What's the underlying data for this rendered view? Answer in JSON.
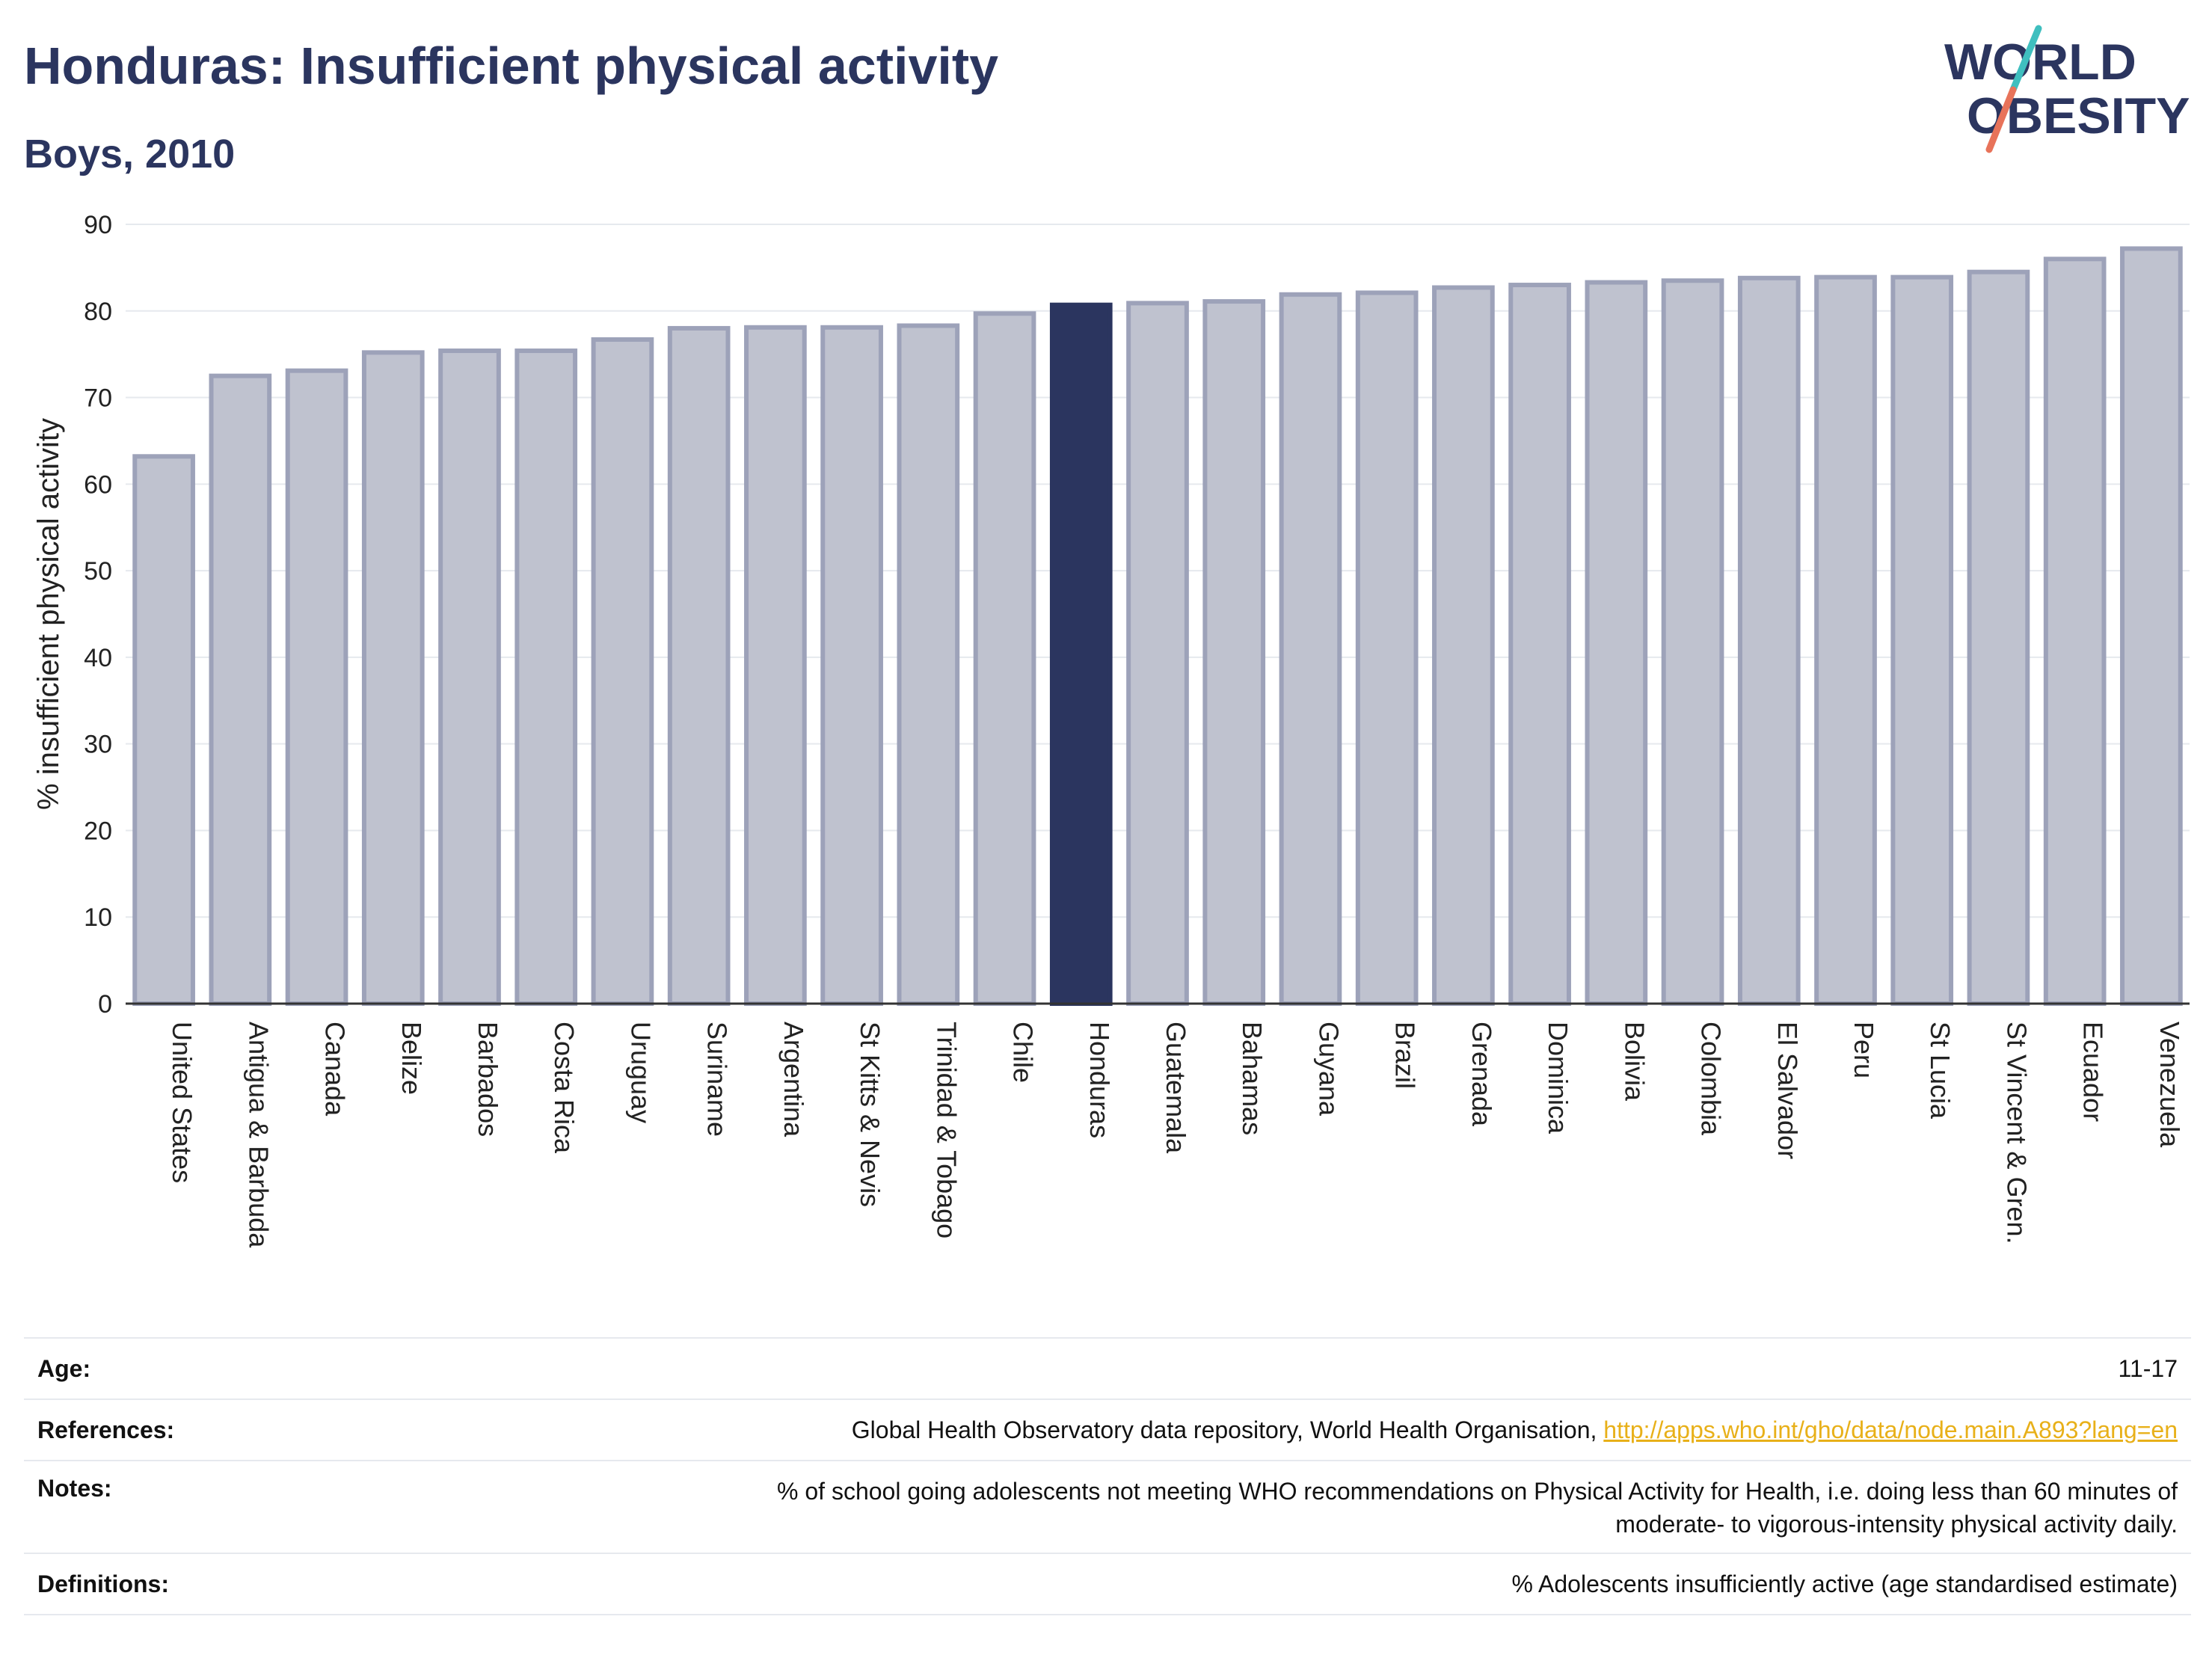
{
  "header": {
    "title": "Honduras: Insufficient physical activity",
    "subtitle": "Boys, 2010",
    "logo_line1": "WORLD",
    "logo_line2": "OBESITY"
  },
  "colors": {
    "navy": "#2b355f",
    "bar_fill": "#bfc2cf",
    "bar_stroke": "#9da2b9",
    "highlight": "#2b355f",
    "link": "#e8b019",
    "logo_teal": "#3fbfbf",
    "logo_coral": "#e8735a"
  },
  "chart_data": {
    "type": "bar",
    "ylabel": "% insufficient physical activity",
    "ylim": [
      0,
      90
    ],
    "yticks": [
      0,
      10,
      20,
      30,
      40,
      50,
      60,
      70,
      80,
      90
    ],
    "grid": true,
    "highlight": "Honduras",
    "categories": [
      "United States",
      "Antigua & Barbuda",
      "Canada",
      "Belize",
      "Barbados",
      "Costa Rica",
      "Uruguay",
      "Suriname",
      "Argentina",
      "St Kitts & Nevis",
      "Trinidad & Tobago",
      "Chile",
      "Honduras",
      "Guatemala",
      "Bahamas",
      "Guyana",
      "Brazil",
      "Grenada",
      "Dominica",
      "Bolivia",
      "Colombia",
      "El Salvador",
      "Peru",
      "St Lucia",
      "St Vincent & Gren.",
      "Ecuador",
      "Venezuela"
    ],
    "values": [
      63.2,
      72.5,
      73.1,
      75.2,
      75.4,
      75.4,
      76.7,
      78.0,
      78.1,
      78.1,
      78.3,
      79.7,
      80.7,
      80.9,
      81.1,
      81.9,
      82.1,
      82.7,
      83.0,
      83.3,
      83.5,
      83.8,
      83.9,
      83.9,
      84.5,
      86.0,
      87.2
    ]
  },
  "meta": {
    "age_label": "Age:",
    "age_value": "11-17",
    "references_label": "References:",
    "references_text": "Global Health Observatory data repository, World Health Organisation, ",
    "references_link": "http://apps.who.int/gho/data/node.main.A893?lang=en",
    "notes_label": "Notes:",
    "notes_line1": "% of school going adolescents not meeting WHO recommendations on Physical Activity for Health, i.e. doing less than 60 minutes of",
    "notes_line2": "moderate- to vigorous-intensity physical activity daily.",
    "definitions_label": "Definitions:",
    "definitions_value": "% Adolescents insufficiently active (age standardised estimate)"
  }
}
